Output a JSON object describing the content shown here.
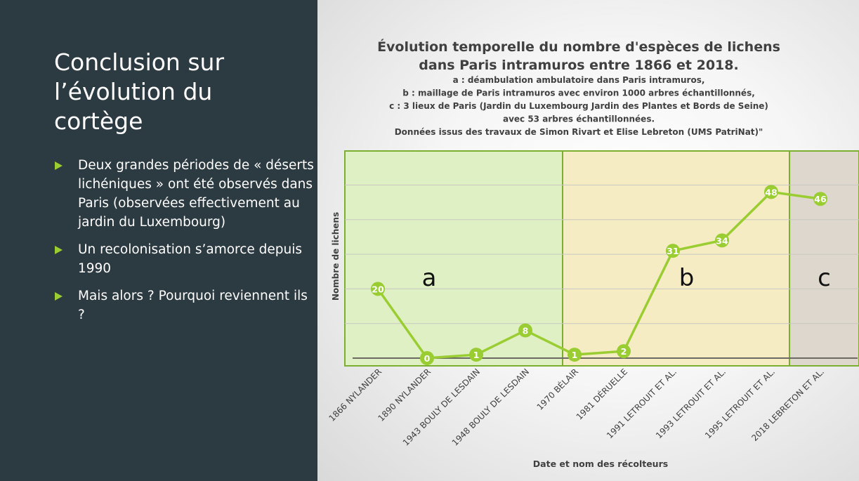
{
  "slide": {
    "title": "Conclusion sur l’évolution du cortège",
    "bullets": [
      "Deux grandes périodes de « déserts lichéniques » ont été observés dans Paris (observées effectivement au jardin du Luxembourg)",
      "Un recolonisation s’amorce depuis 1990",
      "Mais alors ? Pourquoi reviennent ils ?"
    ],
    "accent_color": "#9acd32",
    "panel_color": "#2c3a42"
  },
  "chart_data": {
    "type": "line",
    "title": "Évolution temporelle du nombre d'espèces de lichens dans Paris intramuros entre 1866 et 2018.",
    "subtitle_lines": [
      "a : déambulation ambulatoire dans Paris intramuros,",
      "b : maillage de Paris intramuros avec environ 1000 arbres échantillonnés,",
      "c : 3 lieux de Paris (Jardin du Luxembourg Jardin des Plantes et Bords de Seine)",
      "avec 53 arbres échantillonnées.",
      "Données issus des travaux de Simon Rivart et Elise Lebreton (UMS PatriNat)\""
    ],
    "xlabel": "Date et nom des récolteurs",
    "ylabel": "Nombre de lichens",
    "categories": [
      "1866 NYLANDER",
      "1890 NYLANDER",
      "1943 BOULY DE LESDAIN",
      "1948 BOULY DE LESDAIN",
      "1970 BÉLAIR",
      "1981 DÉRUELLE",
      "1991 LETROUIT ET AL.",
      "1993 LETROUIT ET AL.",
      "1995 LETROUIT ET AL.",
      "2018 LEBRETON ET AL."
    ],
    "values": [
      20,
      0,
      1,
      8,
      1,
      2,
      31,
      34,
      48,
      46
    ],
    "ylim": [
      0,
      60
    ],
    "grid": true,
    "series_color": "#9acd32",
    "regions": [
      {
        "label": "a",
        "from_index": 0,
        "to_index": 3,
        "color": "#dff0c4"
      },
      {
        "label": "b",
        "from_index": 4,
        "to_index": 8,
        "color": "#f6ecc4"
      },
      {
        "label": "c",
        "from_index": 9,
        "to_index": 9,
        "color": "#ddd7cd"
      }
    ],
    "region_border_color": "#7cae2f"
  }
}
